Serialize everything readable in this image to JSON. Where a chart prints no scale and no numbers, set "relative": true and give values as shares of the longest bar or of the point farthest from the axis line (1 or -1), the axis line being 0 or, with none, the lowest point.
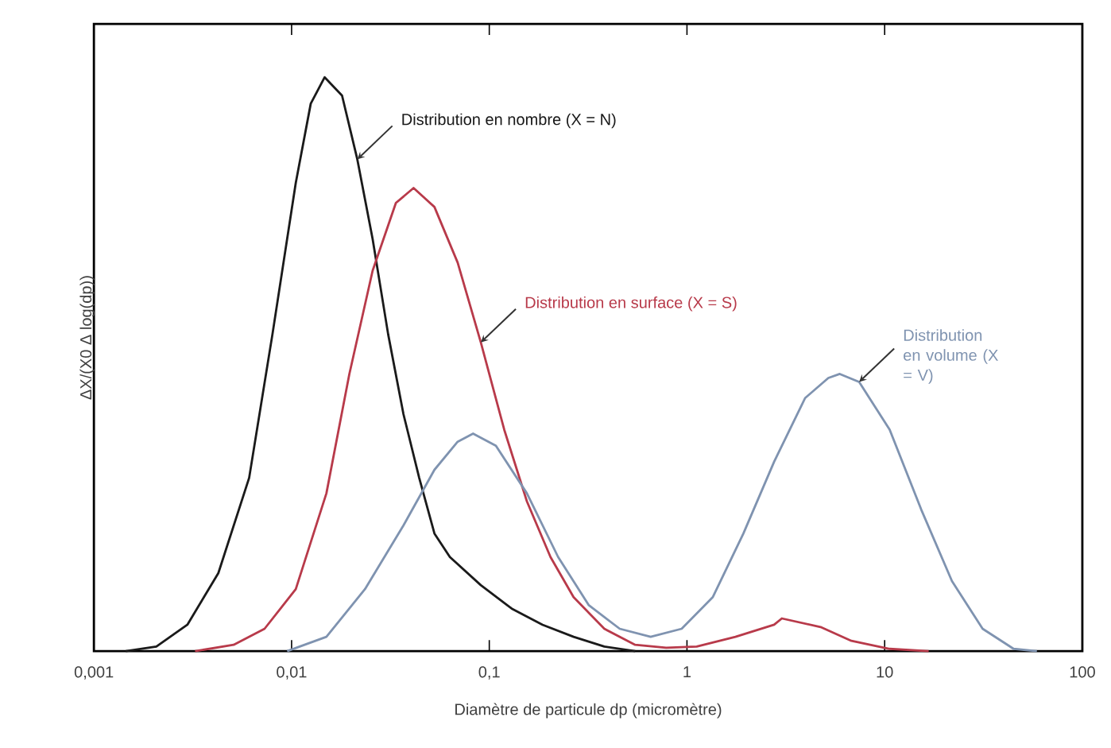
{
  "chart_data": {
    "type": "line",
    "relative": true,
    "xlabel": "Diamètre de particule dp (micromètre)",
    "ylabel": "ΔX/(X0 Δ log(dp))",
    "log": "x",
    "xlim": [
      0.001,
      100
    ],
    "xticks": [
      {
        "value": 0.001,
        "label": "0,001"
      },
      {
        "value": 0.01,
        "label": "0,01"
      },
      {
        "value": 0.1,
        "label": "0,1"
      },
      {
        "value": 1,
        "label": "1"
      },
      {
        "value": 10,
        "label": "10"
      },
      {
        "value": 100,
        "label": "100"
      }
    ],
    "series": [
      {
        "color": "#1a1a1a",
        "x": [
          0.00145,
          0.00207,
          0.00297,
          0.00426,
          0.0061,
          0.008,
          0.0105,
          0.0125,
          0.0147,
          0.018,
          0.0215,
          0.0257,
          0.0308,
          0.0368,
          0.0442,
          0.0528,
          0.0632,
          0.0906,
          0.13,
          0.186,
          0.267,
          0.382,
          0.547
        ],
        "values": [
          0,
          0.008,
          0.046,
          0.136,
          0.302,
          0.552,
          0.816,
          0.954,
          1,
          0.968,
          0.857,
          0.718,
          0.552,
          0.413,
          0.302,
          0.205,
          0.164,
          0.115,
          0.074,
          0.046,
          0.025,
          0.008,
          0
        ]
      },
      {
        "color": "#b83a4a",
        "x": [
          0.00325,
          0.00509,
          0.0073,
          0.0105,
          0.015,
          0.0196,
          0.0257,
          0.0337,
          0.0414,
          0.0528,
          0.0692,
          0.0906,
          0.119,
          0.155,
          0.204,
          0.267,
          0.382,
          0.547,
          0.785,
          1.12,
          1.76,
          2.76,
          3.02,
          4.74,
          6.79,
          10.6,
          16.7
        ],
        "values": [
          0,
          0.011,
          0.039,
          0.108,
          0.275,
          0.483,
          0.663,
          0.781,
          0.807,
          0.774,
          0.677,
          0.538,
          0.386,
          0.261,
          0.164,
          0.094,
          0.039,
          0.011,
          0.006,
          0.008,
          0.025,
          0.046,
          0.057,
          0.042,
          0.018,
          0.004,
          0
        ]
      },
      {
        "color": "#7f93b0",
        "x": [
          0.0095,
          0.015,
          0.0235,
          0.0368,
          0.0528,
          0.0692,
          0.0828,
          0.108,
          0.155,
          0.223,
          0.319,
          0.457,
          0.655,
          0.94,
          1.35,
          1.93,
          2.76,
          3.96,
          5.19,
          5.93,
          7.43,
          10.6,
          15.3,
          21.9,
          31.3,
          44.9,
          58.9
        ],
        "values": [
          0,
          0.025,
          0.108,
          0.219,
          0.316,
          0.365,
          0.379,
          0.358,
          0.275,
          0.164,
          0.08,
          0.039,
          0.025,
          0.039,
          0.094,
          0.205,
          0.33,
          0.441,
          0.476,
          0.483,
          0.469,
          0.386,
          0.247,
          0.122,
          0.039,
          0.004,
          0
        ]
      }
    ],
    "annotations": [
      {
        "text": "Distribution en nombre (X = N)",
        "x": 0.0215,
        "y": 0.857
      },
      {
        "text": "Distribution en surface (X = S)",
        "x": 0.0906,
        "y": 0.538
      },
      {
        "text": "Distribution en volume (X = V)",
        "x": 7.43,
        "y": 0.469
      }
    ]
  }
}
